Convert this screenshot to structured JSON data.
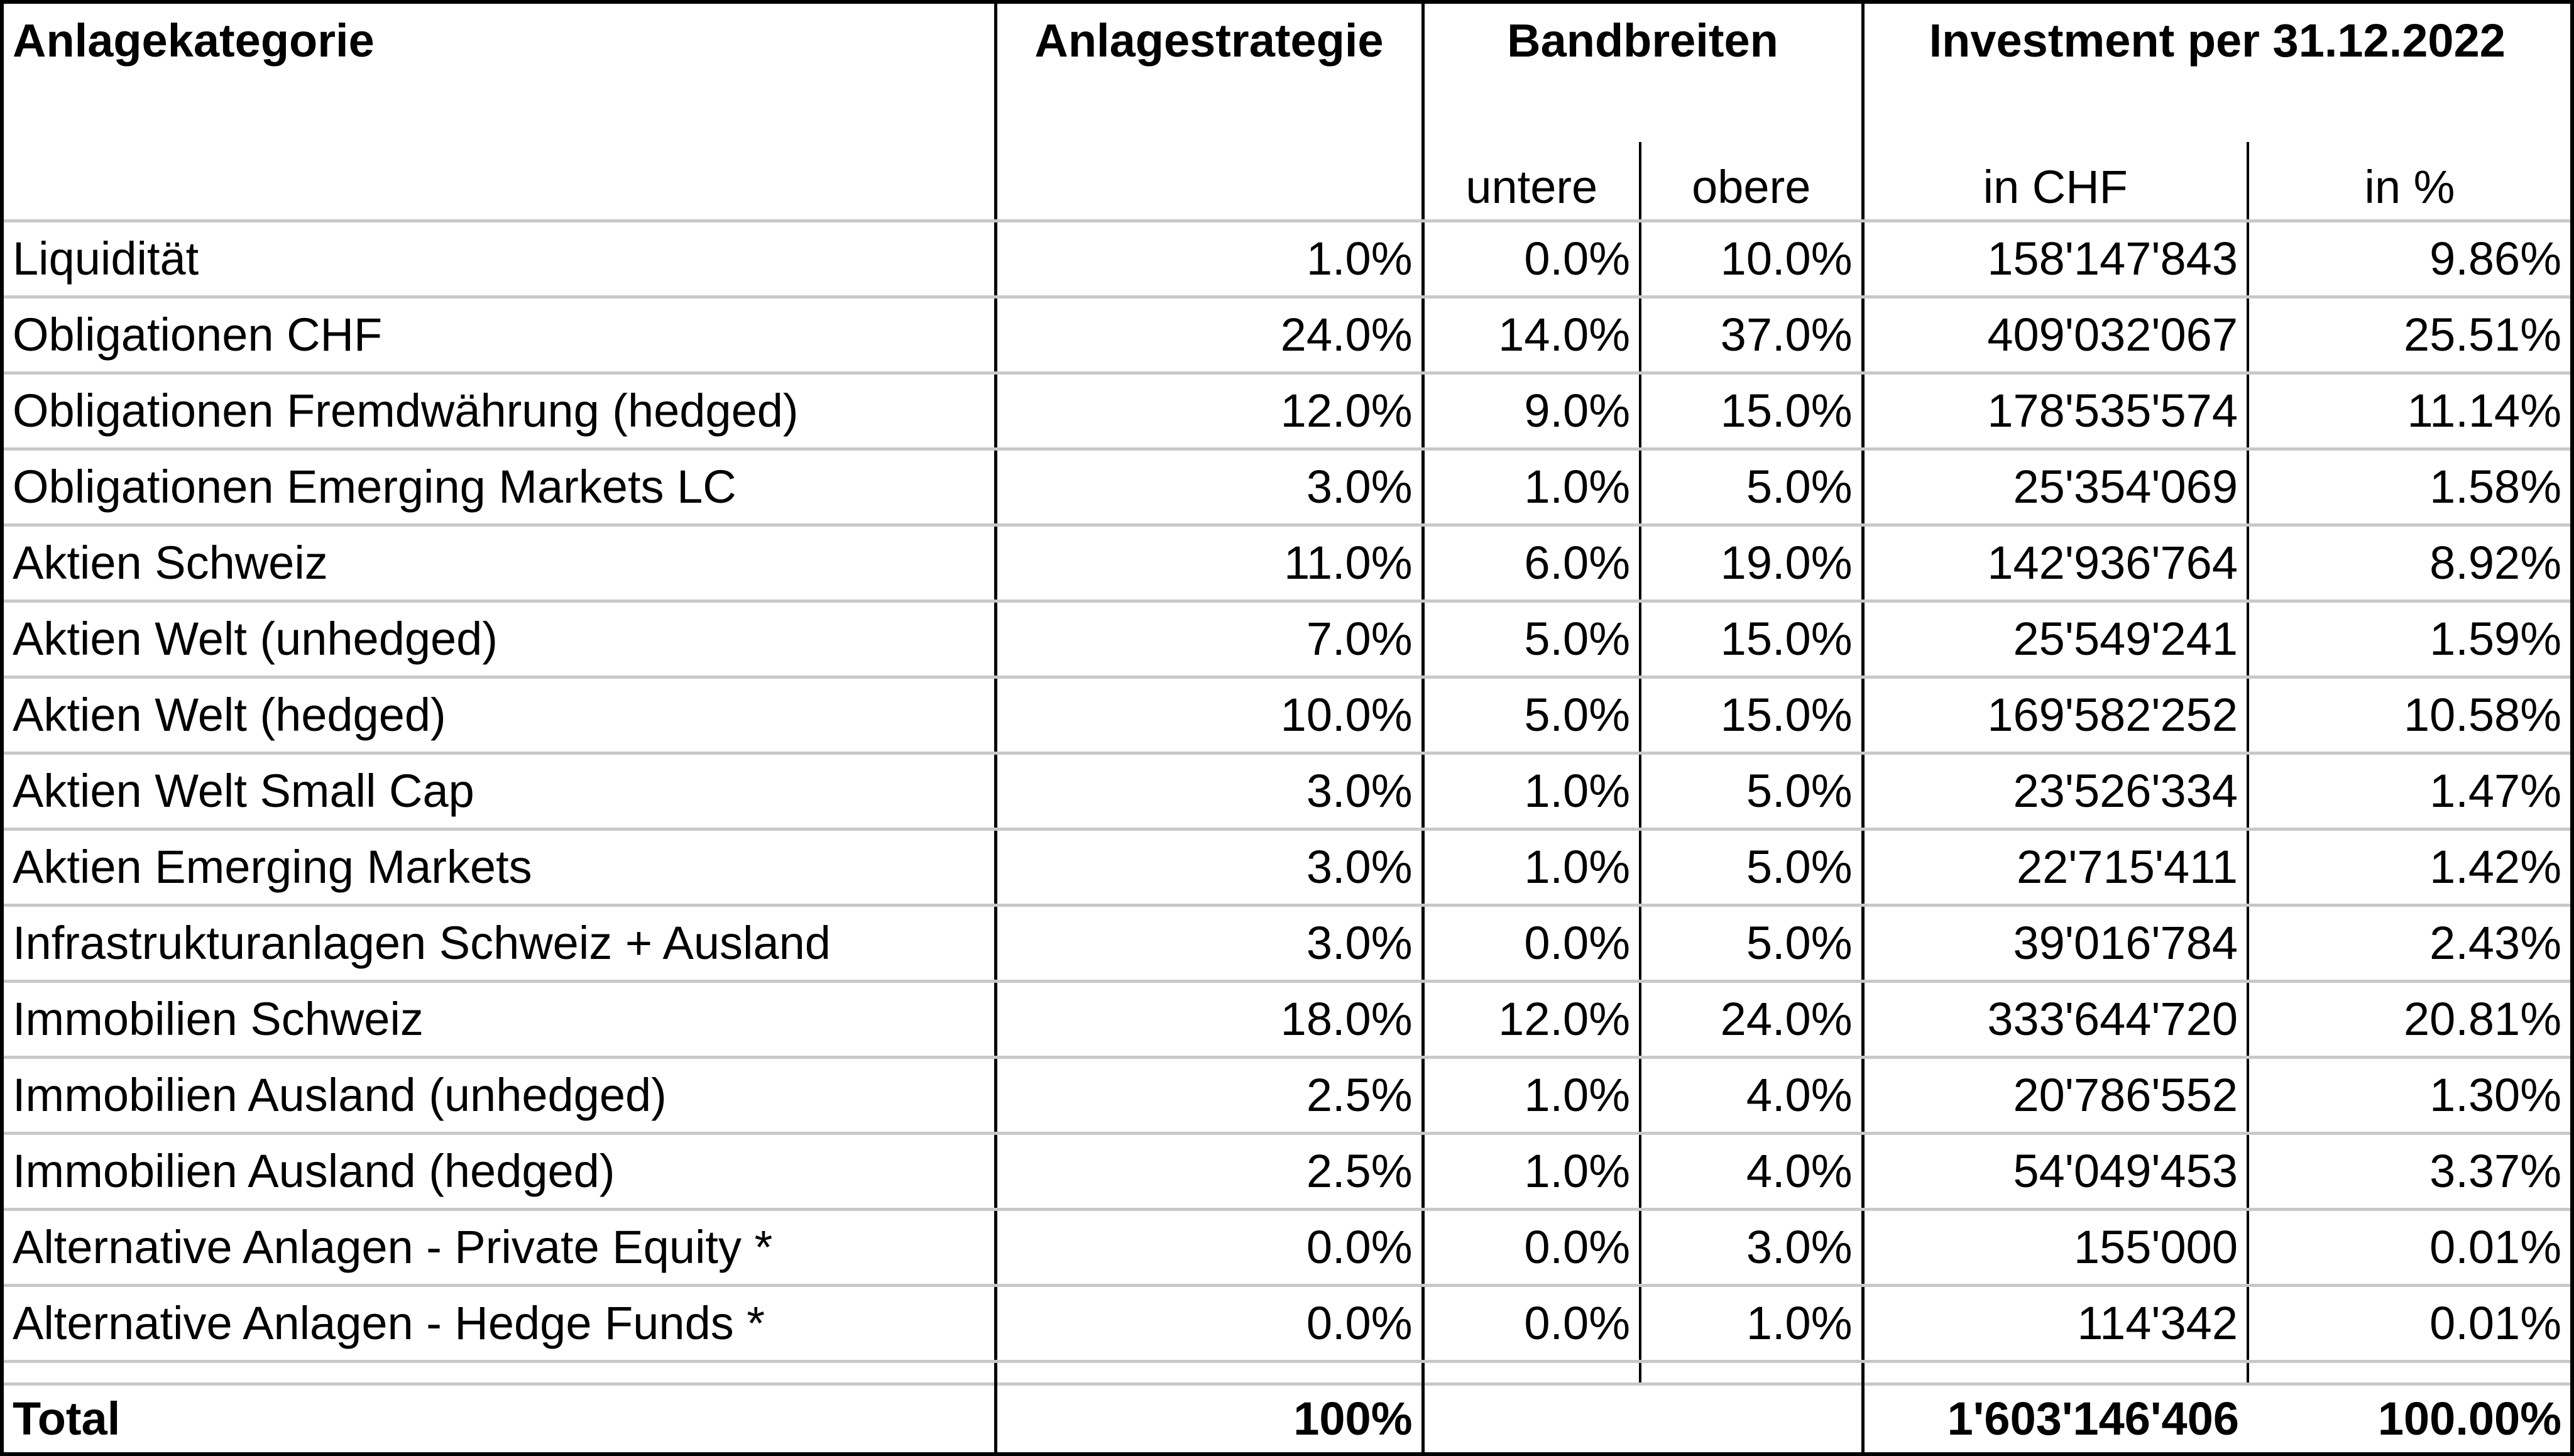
{
  "header": {
    "category": "Anlagekategorie",
    "strategy": "Anlagestrategie",
    "bands": "Bandbreiten",
    "investment": "Investment per 31.12.2022",
    "lower": "untere",
    "upper": "obere",
    "in_chf": "in CHF",
    "in_pct": "in %"
  },
  "rows": [
    {
      "category": "Liquidität",
      "strategy": "1.0%",
      "lower": "0.0%",
      "upper": "10.0%",
      "chf": "158'147'843",
      "pct": "9.86%"
    },
    {
      "category": "Obligationen CHF",
      "strategy": "24.0%",
      "lower": "14.0%",
      "upper": "37.0%",
      "chf": "409'032'067",
      "pct": "25.51%"
    },
    {
      "category": "Obligationen Fremdwährung (hedged)",
      "strategy": "12.0%",
      "lower": "9.0%",
      "upper": "15.0%",
      "chf": "178'535'574",
      "pct": "11.14%"
    },
    {
      "category": "Obligationen Emerging Markets LC",
      "strategy": "3.0%",
      "lower": "1.0%",
      "upper": "5.0%",
      "chf": "25'354'069",
      "pct": "1.58%"
    },
    {
      "category": "Aktien Schweiz",
      "strategy": "11.0%",
      "lower": "6.0%",
      "upper": "19.0%",
      "chf": "142'936'764",
      "pct": "8.92%"
    },
    {
      "category": "Aktien Welt (unhedged)",
      "strategy": "7.0%",
      "lower": "5.0%",
      "upper": "15.0%",
      "chf": "25'549'241",
      "pct": "1.59%"
    },
    {
      "category": "Aktien Welt (hedged)",
      "strategy": "10.0%",
      "lower": "5.0%",
      "upper": "15.0%",
      "chf": "169'582'252",
      "pct": "10.58%"
    },
    {
      "category": "Aktien Welt Small Cap",
      "strategy": "3.0%",
      "lower": "1.0%",
      "upper": "5.0%",
      "chf": "23'526'334",
      "pct": "1.47%"
    },
    {
      "category": "Aktien Emerging Markets",
      "strategy": "3.0%",
      "lower": "1.0%",
      "upper": "5.0%",
      "chf": "22'715'411",
      "pct": "1.42%"
    },
    {
      "category": "Infrastrukturanlagen Schweiz + Ausland",
      "strategy": "3.0%",
      "lower": "0.0%",
      "upper": "5.0%",
      "chf": "39'016'784",
      "pct": "2.43%"
    },
    {
      "category": "Immobilien Schweiz",
      "strategy": "18.0%",
      "lower": "12.0%",
      "upper": "24.0%",
      "chf": "333'644'720",
      "pct": "20.81%"
    },
    {
      "category": "Immobilien Ausland (unhedged)",
      "strategy": "2.5%",
      "lower": "1.0%",
      "upper": "4.0%",
      "chf": "20'786'552",
      "pct": "1.30%"
    },
    {
      "category": "Immobilien Ausland (hedged)",
      "strategy": "2.5%",
      "lower": "1.0%",
      "upper": "4.0%",
      "chf": "54'049'453",
      "pct": "3.37%"
    },
    {
      "category": "Alternative Anlagen - Private Equity *",
      "strategy": "0.0%",
      "lower": "0.0%",
      "upper": "3.0%",
      "chf": "155'000",
      "pct": "0.01%"
    },
    {
      "category": "Alternative Anlagen - Hedge Funds *",
      "strategy": "0.0%",
      "lower": "0.0%",
      "upper": "1.0%",
      "chf": "114'342",
      "pct": "0.01%"
    }
  ],
  "total": {
    "category": "Total",
    "strategy": "100%",
    "chf": "1'603'146'406",
    "pct": "100.00%"
  }
}
